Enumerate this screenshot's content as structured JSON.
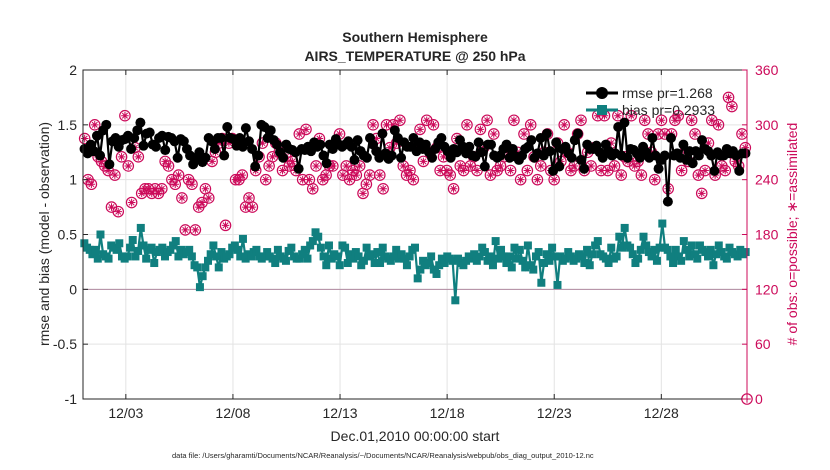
{
  "chart_data": {
    "type": "line",
    "title": "Southern Hemisphere",
    "subtitle": "AIRS_TEMPERATURE @ 250 hPa",
    "xlabel": "Dec.01,2010 00:00:00 start",
    "ylabel": "rmse and bias (model - observation)",
    "ylabel_right": "# of obs: o=possible; ∗=assimilated",
    "footnote": "data file: /Users/gharamti/Documents/NCAR/Reanalysis/~/Documents/NCAR/Reanalysis/webpub/obs_diag_output_2010-12.nc",
    "x_unit": "days since Dec.01,2010 00:00",
    "xlim": [
      0,
      31
    ],
    "ylim": [
      -1,
      2
    ],
    "ylim_right": [
      0,
      360
    ],
    "xticks": [
      2,
      7,
      12,
      17,
      22,
      27
    ],
    "xtick_labels": [
      "12/03",
      "12/08",
      "12/13",
      "12/18",
      "12/23",
      "12/28"
    ],
    "yticks": [
      -1,
      -0.5,
      0,
      0.5,
      1,
      1.5,
      2
    ],
    "ytick_labels": [
      "-1",
      "-0.5",
      "0",
      "0.5",
      "1",
      "1.5",
      "2"
    ],
    "yticks_right": [
      0,
      60,
      120,
      180,
      240,
      300,
      360
    ],
    "ytick_labels_right": [
      "0",
      "60",
      "120",
      "180",
      "240",
      "300",
      "360"
    ],
    "grid": true,
    "legend_position": "top-right",
    "zero_line": 0,
    "series": [
      {
        "name": "rmse",
        "legend_label": "rmse pr=1.268",
        "axis": "left",
        "color": "#000000",
        "marker": "circle",
        "values": [
          1.28,
          1.24,
          1.32,
          1.26,
          1.4,
          1.22,
          1.45,
          1.5,
          1.14,
          1.35,
          1.38,
          1.3,
          1.36,
          1.37,
          1.4,
          1.28,
          1.38,
          1.45,
          1.52,
          1.31,
          1.42,
          1.43,
          1.32,
          1.3,
          1.38,
          1.4,
          1.27,
          1.39,
          1.38,
          1.35,
          1.2,
          1.37,
          1.35,
          1.28,
          1.22,
          1.14,
          1.2,
          1.25,
          1.16,
          1.2,
          1.38,
          1.35,
          1.28,
          1.38,
          1.38,
          1.22,
          1.48,
          1.38,
          1.37,
          1.31,
          1.38,
          1.3,
          1.47,
          1.35,
          1.28,
          1.12,
          1.22,
          1.5,
          1.48,
          1.38,
          1.45,
          1.36,
          1.32,
          1.25,
          1.2,
          1.32,
          1.28,
          1.27,
          1.25,
          1.1,
          1.28,
          1.27,
          1.3,
          1.26,
          1.34,
          1.3,
          1.32,
          1.22,
          1.15,
          1.32,
          1.28,
          1.37,
          1.32,
          1.3,
          1.32,
          1.35,
          1.3,
          1.18,
          1.36,
          1.26,
          1.22,
          1.2,
          1.38,
          1.32,
          1.26,
          1.2,
          1.42,
          1.24,
          1.19,
          1.22,
          1.45,
          1.38,
          1.2,
          1.34,
          1.3,
          1.3,
          1.38,
          1.26,
          1.34,
          1.28,
          1.32,
          1.25,
          1.2,
          1.28,
          1.34,
          1.38,
          1.3,
          1.26,
          1.2,
          1.28,
          1.25,
          1.36,
          1.3,
          1.24,
          1.3,
          1.22,
          1.21,
          1.34,
          1.25,
          1.12,
          1.32,
          1.32,
          1.22,
          1.2,
          1.22,
          1.28,
          1.32,
          1.2,
          1.28,
          1.21,
          1.18,
          1.22,
          1.28,
          1.3,
          1.36,
          1.2,
          1.24,
          1.38,
          1.22,
          1.42,
          1.26,
          1.08,
          1.34,
          1.12,
          1.28,
          1.3,
          1.24,
          1.2,
          1.36,
          1.42,
          1.18,
          1.1,
          1.32,
          1.28,
          1.28,
          1.31,
          1.25,
          1.2,
          1.32,
          1.26,
          1.22,
          1.24,
          1.48,
          1.22,
          1.52,
          1.2,
          1.28,
          1.27,
          1.24,
          1.2,
          1.3,
          1.25,
          1.2,
          1.38,
          1.22,
          1.1,
          1.18,
          1.22,
          0.8,
          1.38,
          1.22,
          1.24,
          1.2,
          1.32,
          1.18,
          1.26,
          1.15,
          1.26,
          1.22,
          1.36,
          1.28,
          1.26,
          1.22,
          1.08,
          1.25,
          1.22,
          1.22,
          1.28,
          1.24,
          1.26,
          1.22,
          1.08,
          1.24,
          1.24
        ]
      },
      {
        "name": "bias",
        "legend_label": "bias pr=0.2933",
        "axis": "left",
        "color": "#107f7f",
        "marker": "square",
        "values": [
          0.42,
          0.38,
          0.36,
          0.32,
          0.36,
          0.28,
          0.5,
          0.32,
          0.3,
          0.28,
          0.4,
          0.38,
          0.36,
          0.42,
          0.3,
          0.28,
          0.3,
          0.38,
          0.45,
          0.3,
          0.35,
          0.56,
          0.4,
          0.28,
          0.36,
          0.38,
          0.24,
          0.34,
          0.36,
          0.38,
          0.3,
          0.34,
          0.36,
          0.4,
          0.44,
          0.3,
          0.36,
          0.32,
          0.34,
          0.36,
          0.3,
          0.22,
          0.2,
          0.02,
          0.12,
          0.2,
          0.26,
          0.32,
          0.4,
          0.3,
          0.2,
          0.34,
          0.28,
          0.3,
          0.32,
          0.38,
          0.4,
          0.36,
          0.3,
          0.46,
          0.28,
          0.32,
          0.3,
          0.34,
          0.36,
          0.3,
          0.28,
          0.3,
          0.34,
          0.3,
          0.28,
          0.24,
          0.36,
          0.3,
          0.28,
          0.26,
          0.35,
          0.38,
          0.3,
          0.28,
          0.28,
          0.32,
          0.36,
          0.28,
          0.4,
          0.44,
          0.52,
          0.48,
          0.38,
          0.3,
          0.22,
          0.4,
          0.28,
          0.32,
          0.3,
          0.22,
          0.4,
          0.38,
          0.24,
          0.32,
          0.28,
          0.34,
          0.3,
          0.22,
          0.26,
          0.38,
          0.3,
          0.32,
          0.24,
          0.34,
          0.24,
          0.38,
          0.3,
          0.28,
          0.26,
          0.3,
          0.36,
          0.28,
          0.32,
          0.28,
          0.22,
          0.3,
          0.36,
          0.38,
          0.1,
          0.18,
          0.26,
          0.22,
          0.24,
          0.3,
          0.18,
          0.14,
          0.22,
          0.28,
          0.24,
          0.3,
          0.28,
          0.26,
          -0.1,
          0.28,
          0.24,
          0.22,
          0.26,
          0.3,
          0.28,
          0.32,
          0.26,
          0.3,
          0.38,
          0.34,
          0.26,
          0.3,
          0.22,
          0.44,
          0.28,
          0.36,
          0.3,
          0.24,
          0.3,
          0.2,
          0.38,
          0.28,
          0.36,
          0.26,
          0.2,
          0.4,
          0.22,
          0.18,
          0.3,
          0.34,
          0.06,
          0.24,
          0.32,
          0.26,
          0.38,
          0.3,
          0.04,
          0.3,
          0.26,
          0.28,
          0.34,
          0.3,
          0.26,
          0.28,
          0.32,
          0.3,
          0.24,
          0.36,
          0.22,
          0.32,
          0.4,
          0.44,
          0.32,
          0.3,
          0.28,
          0.24,
          0.38,
          0.28,
          0.3,
          0.48,
          0.38,
          0.56,
          0.4,
          0.38,
          0.32,
          0.24,
          0.28,
          0.36,
          0.48,
          0.4,
          0.34,
          0.3,
          0.36,
          0.26,
          0.38,
          0.6,
          0.38,
          0.36,
          0.3,
          0.24,
          0.36,
          0.3,
          0.26,
          0.44,
          0.36,
          0.3,
          0.4,
          0.32,
          0.28,
          0.4,
          0.36,
          0.34,
          0.3,
          0.36,
          0.22,
          0.32,
          0.4,
          0.34,
          0.3,
          0.28,
          0.38,
          0.34,
          0.32,
          0.3,
          0.36,
          0.32,
          0.34
        ]
      },
      {
        "name": "obs possible",
        "axis": "right",
        "color": "#cc0a5a",
        "marker": "circle-open",
        "values": [
          285,
          240,
          235,
          300,
          265,
          260,
          255,
          250,
          210,
          245,
          205,
          265,
          310,
          255,
          215,
          275,
          265,
          225,
          230,
          230,
          225,
          230,
          225,
          230,
          260,
          255,
          240,
          235,
          245,
          220,
          185,
          240,
          235,
          185,
          210,
          215,
          230,
          220,
          260,
          270,
          280,
          285,
          190,
          280,
          285,
          240,
          240,
          245,
          210,
          220,
          210,
          250,
          265,
          280,
          240,
          255,
          265,
          280,
          270,
          250,
          265,
          255,
          260,
          250,
          290,
          240,
          295,
          240,
          230,
          255,
          285,
          240,
          245,
          255,
          255,
          280,
          290,
          245,
          255,
          240,
          250,
          245,
          255,
          225,
          235,
          245,
          300,
          285,
          245,
          230,
          300,
          275,
          300,
          280,
          305,
          255,
          245,
          250,
          240,
          275,
          295,
          260,
          305,
          270,
          300,
          275,
          250,
          265,
          250,
          245,
          230,
          285,
          255,
          250,
          300,
          255,
          265,
          250,
          295,
          275,
          305,
          245,
          290,
          250,
          255,
          265,
          275,
          250,
          305,
          270,
          240,
          290,
          250,
          300,
          265,
          240,
          255,
          270,
          290,
          250,
          240,
          280,
          260,
          300,
          270,
          250,
          255,
          290,
          305,
          250,
          270,
          255,
          275,
          310,
          250,
          310,
          250,
          280,
          255,
          310,
          245,
          265,
          260,
          310,
          255,
          260,
          245,
          305,
          290,
          270,
          240,
          290,
          305,
          290,
          230,
          290,
          305,
          310,
          250,
          270,
          260,
          305,
          290,
          245,
          225,
          250,
          280,
          305,
          245,
          300,
          255,
          250,
          330,
          320,
          260,
          255,
          290,
          275
        ]
      }
    ]
  }
}
